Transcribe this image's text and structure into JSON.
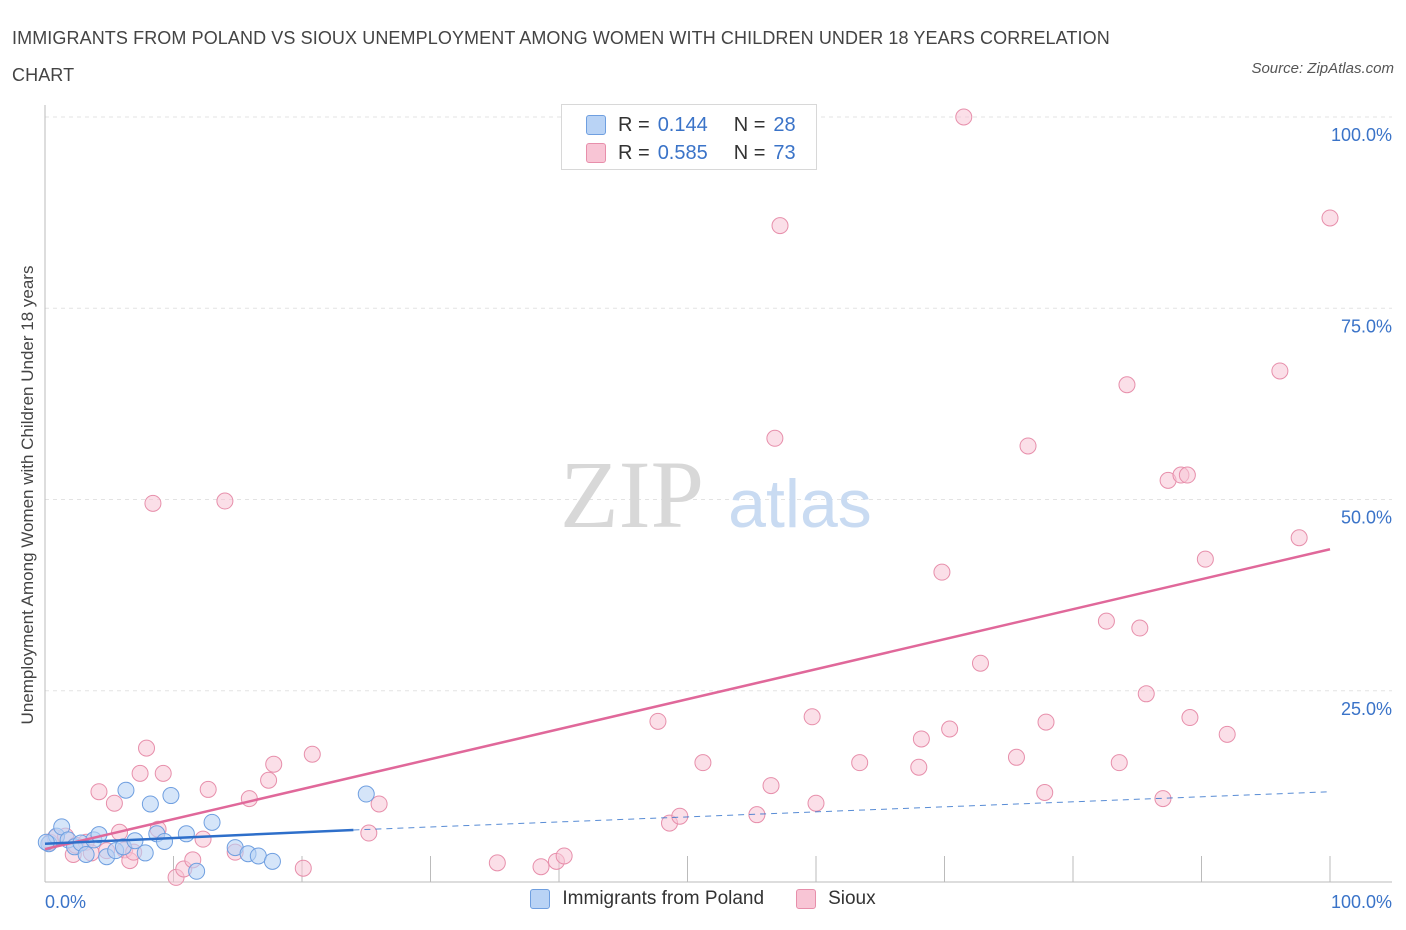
{
  "title": "IMMIGRANTS FROM POLAND VS SIOUX UNEMPLOYMENT AMONG WOMEN WITH CHILDREN UNDER 18 YEARS CORRELATION CHART",
  "source": "Source: ZipAtlas.com",
  "watermark": {
    "zip": "ZIP",
    "atlas": "atlas"
  },
  "legend_top": {
    "rows": [
      {
        "r_label": "R =",
        "r_value": "0.144",
        "n_label": "N =",
        "n_value": "28"
      },
      {
        "r_label": "R =",
        "r_value": "0.585",
        "n_label": "N =",
        "n_value": "73"
      }
    ]
  },
  "legend_bottom": {
    "series1": "Immigrants from Poland",
    "series2": "Sioux"
  },
  "colors": {
    "poland_fill": "#b9d3f5",
    "poland_stroke": "#6f9fe0",
    "poland_line": "#2e6fca",
    "sioux_fill": "#f8c5d5",
    "sioux_stroke": "#e78fab",
    "sioux_line": "#e0689a",
    "axis_label": "#3a73c8",
    "grid": "#e3e3e3"
  },
  "chart_data": {
    "type": "scatter",
    "title": "IMMIGRANTS FROM POLAND VS SIOUX UNEMPLOYMENT AMONG WOMEN WITH CHILDREN UNDER 18 YEARS CORRELATION CHART",
    "xlabel": "",
    "ylabel": "Unemployment Among Women with Children Under 18 years",
    "xlim": [
      0,
      100
    ],
    "ylim": [
      0,
      100
    ],
    "x_tick_labels": [
      "0.0%",
      "100.0%"
    ],
    "y_tick_labels": [
      "100.0%",
      "75.0%",
      "50.0%",
      "25.0%"
    ],
    "y_tick_values": [
      100,
      75,
      50,
      25
    ],
    "grid": true,
    "series": [
      {
        "name": "Immigrants from Poland",
        "R": 0.144,
        "N": 28,
        "trend": {
          "x0": 0,
          "y0": 5.0,
          "x1": 24.0,
          "y1": 6.8,
          "dashed_to_x": 100,
          "dashed_to_y": 11.8
        },
        "points": [
          [
            0.3,
            5.0
          ],
          [
            0.9,
            6.0
          ],
          [
            1.3,
            7.2
          ],
          [
            1.8,
            5.5
          ],
          [
            2.3,
            4.6
          ],
          [
            2.8,
            5.1
          ],
          [
            3.2,
            3.6
          ],
          [
            3.8,
            5.5
          ],
          [
            4.2,
            6.2
          ],
          [
            4.8,
            3.3
          ],
          [
            5.5,
            4.1
          ],
          [
            6.1,
            4.6
          ],
          [
            6.3,
            12.0
          ],
          [
            7.0,
            5.4
          ],
          [
            7.8,
            3.8
          ],
          [
            8.2,
            10.2
          ],
          [
            8.7,
            6.3
          ],
          [
            9.3,
            5.3
          ],
          [
            9.8,
            11.3
          ],
          [
            11.0,
            6.3
          ],
          [
            11.8,
            1.4
          ],
          [
            13.0,
            7.8
          ],
          [
            14.8,
            4.5
          ],
          [
            15.8,
            3.7
          ],
          [
            16.6,
            3.4
          ],
          [
            17.7,
            2.7
          ],
          [
            25.0,
            11.5
          ],
          [
            0.1,
            5.2
          ]
        ]
      },
      {
        "name": "Sioux",
        "R": 0.585,
        "N": 73,
        "trend": {
          "x0": 0,
          "y0": 4.3,
          "x1": 100,
          "y1": 43.5
        },
        "points": [
          [
            0.4,
            5.2
          ],
          [
            0.8,
            5.8
          ],
          [
            1.6,
            6.0
          ],
          [
            2.2,
            3.6
          ],
          [
            2.4,
            4.8
          ],
          [
            3.2,
            5.2
          ],
          [
            3.6,
            3.8
          ],
          [
            4.2,
            11.8
          ],
          [
            4.8,
            4.1
          ],
          [
            5.4,
            10.3
          ],
          [
            5.8,
            6.5
          ],
          [
            6.2,
            4.2
          ],
          [
            6.6,
            2.8
          ],
          [
            6.9,
            3.9
          ],
          [
            7.4,
            14.2
          ],
          [
            7.9,
            17.5
          ],
          [
            8.4,
            49.5
          ],
          [
            8.8,
            6.9
          ],
          [
            9.2,
            14.2
          ],
          [
            10.2,
            0.6
          ],
          [
            10.8,
            1.7
          ],
          [
            11.5,
            2.9
          ],
          [
            12.3,
            5.6
          ],
          [
            12.7,
            12.1
          ],
          [
            14.0,
            49.8
          ],
          [
            14.8,
            3.9
          ],
          [
            15.9,
            10.9
          ],
          [
            17.4,
            13.3
          ],
          [
            17.8,
            15.4
          ],
          [
            20.1,
            1.8
          ],
          [
            20.8,
            16.7
          ],
          [
            25.2,
            6.4
          ],
          [
            26.0,
            10.2
          ],
          [
            35.2,
            2.5
          ],
          [
            38.6,
            2.0
          ],
          [
            39.8,
            2.7
          ],
          [
            40.4,
            3.4
          ],
          [
            47.7,
            21.0
          ],
          [
            48.6,
            7.7
          ],
          [
            49.4,
            8.6
          ],
          [
            51.2,
            15.6
          ],
          [
            55.4,
            8.8
          ],
          [
            56.5,
            12.6
          ],
          [
            56.8,
            58.0
          ],
          [
            57.2,
            85.8
          ],
          [
            60.0,
            10.3
          ],
          [
            59.7,
            21.6
          ],
          [
            63.4,
            15.6
          ],
          [
            68.0,
            15.0
          ],
          [
            68.2,
            18.7
          ],
          [
            70.4,
            20.0
          ],
          [
            69.8,
            40.5
          ],
          [
            71.5,
            100.0
          ],
          [
            72.8,
            28.6
          ],
          [
            75.6,
            16.3
          ],
          [
            76.5,
            57.0
          ],
          [
            77.8,
            11.7
          ],
          [
            77.9,
            20.9
          ],
          [
            82.6,
            34.1
          ],
          [
            83.6,
            15.6
          ],
          [
            84.2,
            65.0
          ],
          [
            85.2,
            33.2
          ],
          [
            85.7,
            24.6
          ],
          [
            87.0,
            10.9
          ],
          [
            87.4,
            52.5
          ],
          [
            88.4,
            53.2
          ],
          [
            88.9,
            53.2
          ],
          [
            89.1,
            21.5
          ],
          [
            90.3,
            42.2
          ],
          [
            92.0,
            19.3
          ],
          [
            96.1,
            66.8
          ],
          [
            97.6,
            45.0
          ],
          [
            100.0,
            86.8
          ]
        ]
      }
    ]
  }
}
